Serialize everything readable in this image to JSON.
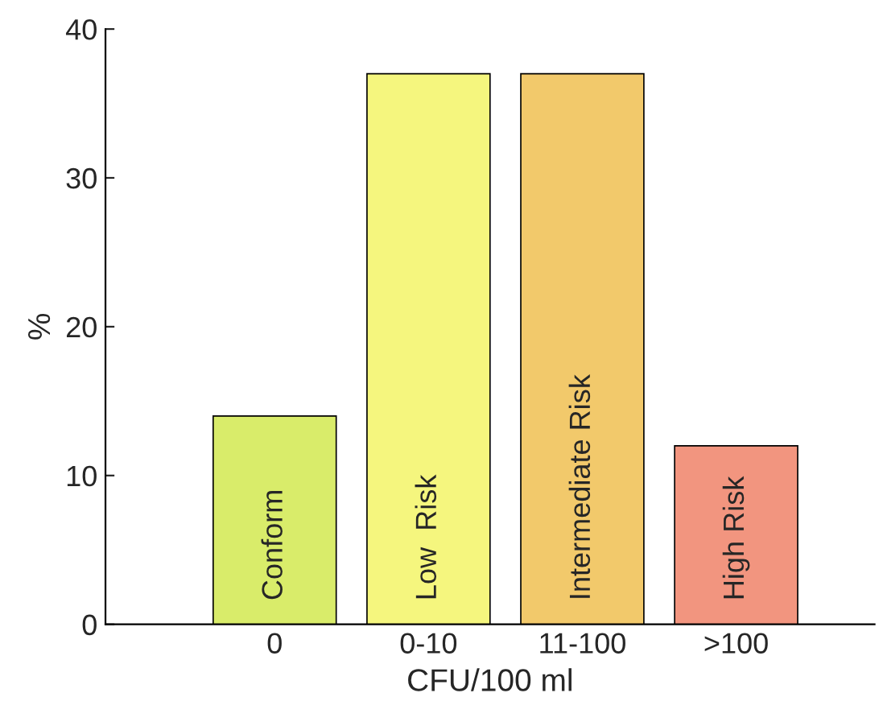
{
  "chart_data": {
    "type": "bar",
    "xlabel": "CFU/100 ml",
    "ylabel": "%",
    "categories": [
      "0",
      "0-10",
      "11-100",
      ">100"
    ],
    "values": [
      14,
      37,
      37,
      12
    ],
    "colors": [
      "#d9ec6a",
      "#f5f67e",
      "#f2c96b",
      "#f2957f"
    ],
    "ylim": [
      0,
      40
    ],
    "yticks": [
      0,
      10,
      20,
      30,
      40
    ],
    "grid": false,
    "annotations": [
      "Conform",
      "Low  Risk",
      "Intermediate Risk",
      "High Risk"
    ]
  }
}
